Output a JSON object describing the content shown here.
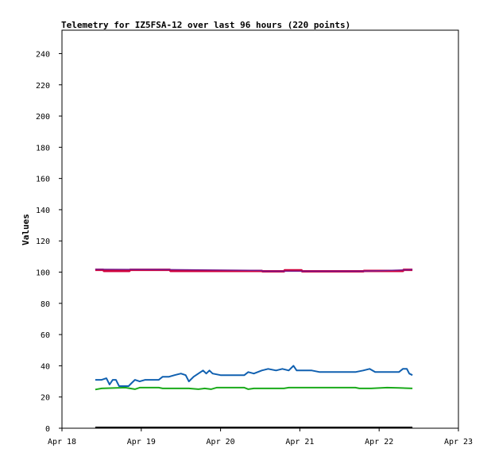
{
  "chart_data": {
    "type": "line",
    "title": "Telemetry for IZ5FSA-12 over last 96 hours (220 points)",
    "xlabel": "",
    "ylabel": "Values",
    "x_ticks": [
      "Apr 18",
      "Apr 19",
      "Apr 20",
      "Apr 21",
      "Apr 22",
      "Apr 23"
    ],
    "y_ticks": [
      "0",
      "20",
      "40",
      "60",
      "80",
      "100",
      "120",
      "140",
      "160",
      "180",
      "200",
      "220",
      "240"
    ],
    "xlim": [
      0,
      5
    ],
    "ylim": [
      0,
      255
    ],
    "grid": false,
    "legend": "none",
    "series": [
      {
        "color": "#d0003c",
        "width": 3,
        "points": [
          [
            0.42,
            101.5
          ],
          [
            0.52,
            101.5
          ],
          [
            0.53,
            100.8
          ],
          [
            0.85,
            100.8
          ],
          [
            0.86,
            101.5
          ],
          [
            1.36,
            101.5
          ],
          [
            1.37,
            100.8
          ],
          [
            2.52,
            100.8
          ],
          [
            2.53,
            100.5
          ],
          [
            2.8,
            100.5
          ],
          [
            2.81,
            101.2
          ],
          [
            3.02,
            101.2
          ],
          [
            3.03,
            100.5
          ],
          [
            3.8,
            100.5
          ],
          [
            3.81,
            100.8
          ],
          [
            4.3,
            100.8
          ],
          [
            4.31,
            101.5
          ],
          [
            4.42,
            101.5
          ]
        ]
      },
      {
        "color": "#7a1a8c",
        "width": 1.5,
        "points": [
          [
            0.42,
            101.8
          ],
          [
            1.36,
            101.6
          ],
          [
            2.52,
            101.1
          ],
          [
            2.53,
            100.6
          ],
          [
            3.8,
            100.6
          ],
          [
            4.42,
            101.6
          ]
        ]
      },
      {
        "color": "#1060b0",
        "width": 2,
        "points": [
          [
            0.42,
            31
          ],
          [
            0.5,
            31
          ],
          [
            0.56,
            32
          ],
          [
            0.6,
            28
          ],
          [
            0.64,
            31
          ],
          [
            0.68,
            31
          ],
          [
            0.72,
            27
          ],
          [
            0.84,
            27
          ],
          [
            0.88,
            29
          ],
          [
            0.92,
            31
          ],
          [
            0.98,
            30
          ],
          [
            1.05,
            31
          ],
          [
            1.22,
            31
          ],
          [
            1.27,
            33
          ],
          [
            1.35,
            33
          ],
          [
            1.42,
            34
          ],
          [
            1.5,
            35
          ],
          [
            1.56,
            34
          ],
          [
            1.6,
            30
          ],
          [
            1.66,
            33
          ],
          [
            1.72,
            35
          ],
          [
            1.78,
            37
          ],
          [
            1.82,
            35
          ],
          [
            1.86,
            37
          ],
          [
            1.9,
            35
          ],
          [
            2.0,
            34
          ],
          [
            2.3,
            34
          ],
          [
            2.35,
            36
          ],
          [
            2.42,
            35
          ],
          [
            2.52,
            37
          ],
          [
            2.6,
            38
          ],
          [
            2.7,
            37
          ],
          [
            2.78,
            38
          ],
          [
            2.86,
            37
          ],
          [
            2.92,
            40
          ],
          [
            2.96,
            37
          ],
          [
            3.05,
            37
          ],
          [
            3.15,
            37
          ],
          [
            3.25,
            36
          ],
          [
            3.4,
            36
          ],
          [
            3.7,
            36
          ],
          [
            3.8,
            37
          ],
          [
            3.88,
            38
          ],
          [
            3.95,
            36
          ],
          [
            4.05,
            36
          ],
          [
            4.25,
            36
          ],
          [
            4.3,
            38
          ],
          [
            4.35,
            38
          ],
          [
            4.38,
            35
          ],
          [
            4.42,
            34
          ]
        ]
      },
      {
        "color": "#1aaa1a",
        "width": 2,
        "points": [
          [
            0.42,
            24.8
          ],
          [
            0.5,
            25.5
          ],
          [
            0.8,
            26
          ],
          [
            0.92,
            25
          ],
          [
            0.98,
            26
          ],
          [
            1.22,
            26
          ],
          [
            1.27,
            25.5
          ],
          [
            1.6,
            25.5
          ],
          [
            1.72,
            25
          ],
          [
            1.8,
            25.5
          ],
          [
            1.88,
            25
          ],
          [
            1.95,
            26
          ],
          [
            2.3,
            26
          ],
          [
            2.35,
            25
          ],
          [
            2.42,
            25.5
          ],
          [
            2.8,
            25.5
          ],
          [
            2.86,
            26
          ],
          [
            3.0,
            26
          ],
          [
            3.7,
            26
          ],
          [
            3.75,
            25.5
          ],
          [
            3.9,
            25.5
          ],
          [
            4.1,
            26
          ],
          [
            4.25,
            25.8
          ],
          [
            4.42,
            25.5
          ]
        ]
      },
      {
        "color": "#000000",
        "width": 2,
        "points": [
          [
            0.42,
            0.5
          ],
          [
            4.42,
            0.5
          ]
        ]
      }
    ]
  }
}
